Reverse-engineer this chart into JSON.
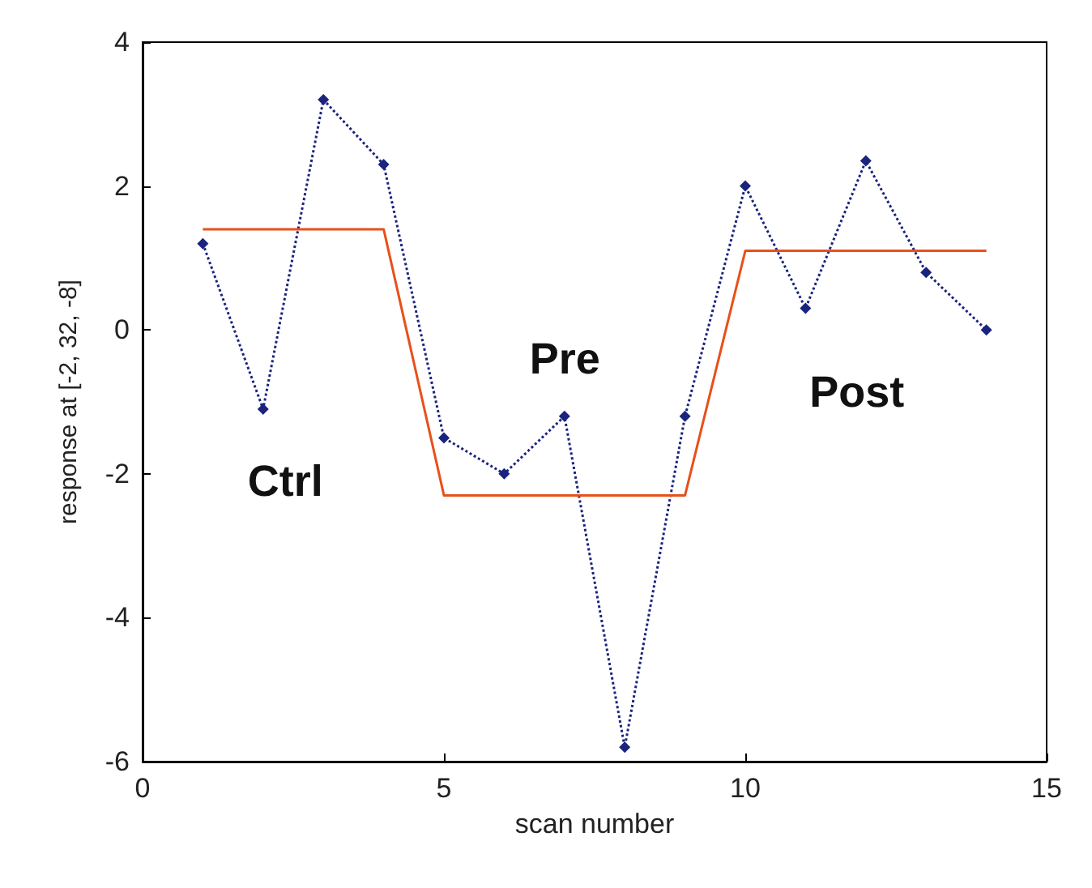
{
  "chart_data": {
    "type": "line",
    "xlabel": "scan number",
    "ylabel": "response at [-2, 32, -8]",
    "xlim": [
      0,
      15
    ],
    "xticks": [
      0,
      5,
      10,
      15
    ],
    "ylim": [
      -6,
      4
    ],
    "yticks": [
      -6,
      -4,
      -2,
      0,
      2,
      4
    ],
    "series": [
      {
        "color": "#1a237e",
        "marker": "diamond",
        "line_style": "dotted",
        "x": [
          1,
          2,
          3,
          4,
          5,
          6,
          7,
          8,
          9,
          10,
          11,
          12,
          13,
          14
        ],
        "values": [
          1.2,
          -1.1,
          3.2,
          2.3,
          -1.5,
          -2.0,
          -1.2,
          -5.8,
          -1.2,
          2.0,
          0.3,
          2.35,
          0.8,
          0.0
        ]
      },
      {
        "color": "#e8501a",
        "marker": "none",
        "line_style": "solid",
        "x": [
          1,
          4,
          5,
          9,
          10,
          14
        ],
        "values": [
          1.4,
          1.4,
          -2.3,
          -2.3,
          1.1,
          1.1
        ]
      }
    ],
    "annotations": [
      "Ctrl",
      "Pre",
      "Post"
    ]
  }
}
